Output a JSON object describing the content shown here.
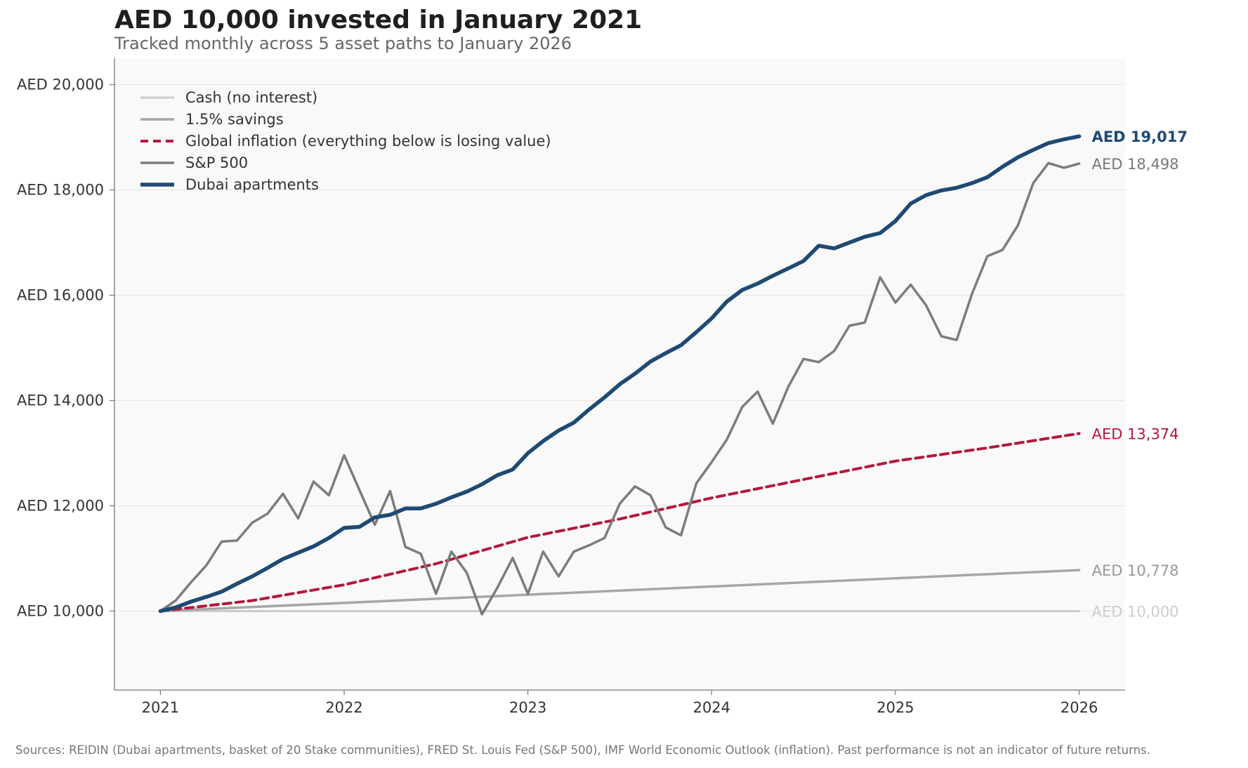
{
  "colors": {
    "cash": "#cccccc",
    "savings": "#a6a6a6",
    "inflation": "#b5173b",
    "sp500": "#7c7c7c",
    "dubai": "#1e4a73",
    "axis": "#777777",
    "grid": "#e6e6e6",
    "plot_bg": "#f9f9fa"
  },
  "chart_data": {
    "type": "line",
    "title": "AED 10,000 invested in January 2021",
    "subtitle": "Tracked monthly across 5 asset paths to January 2026",
    "xlabel": "",
    "ylabel": "",
    "xlim": [
      2020.75,
      2026.25
    ],
    "ylim": [
      8500,
      20500
    ],
    "x_ticks": [
      2021,
      2022,
      2023,
      2024,
      2025,
      2026
    ],
    "x_tick_labels": [
      "2021",
      "2022",
      "2023",
      "2024",
      "2025",
      "2026"
    ],
    "y_ticks": [
      10000,
      12000,
      14000,
      16000,
      18000,
      20000
    ],
    "y_tick_labels": [
      "AED 10,000",
      "AED 12,000",
      "AED 14,000",
      "AED 16,000",
      "AED 18,000",
      "AED 20,000"
    ],
    "grid": "horizontal",
    "legend_position": "top-left",
    "footnote": "Sources: REIDIN (Dubai apartments, basket of 20 Stake communities), FRED St. Louis Fed (S&P 500), IMF World Economic Outlook (inflation). Past performance is not an indicator of future returns.",
    "series": [
      {
        "name": "Cash (no interest)",
        "key": "cash",
        "x_start": "2021-01",
        "x_step": "monthly",
        "values": [
          10000,
          10000
        ],
        "x": [
          2021,
          2026
        ],
        "end_label": "AED 10,000"
      },
      {
        "name": "1.5% savings",
        "key": "savings",
        "x": [
          2021,
          2026
        ],
        "values": [
          10000,
          10778
        ],
        "end_label": "AED 10,778"
      },
      {
        "name": "Global inflation (everything below is losing value)",
        "key": "inflation",
        "x": [
          2021,
          2021.5,
          2022,
          2022.5,
          2023,
          2023.5,
          2024,
          2024.5,
          2025,
          2025.5,
          2026
        ],
        "values": [
          10000,
          10200,
          10500,
          10900,
          11400,
          11750,
          12150,
          12500,
          12850,
          13100,
          13374
        ],
        "end_label": "AED 13,374"
      },
      {
        "name": "S&P 500",
        "key": "sp500",
        "x": [
          2021,
          2021.083,
          2021.167,
          2021.25,
          2021.333,
          2021.417,
          2021.5,
          2021.583,
          2021.667,
          2021.75,
          2021.833,
          2021.917,
          2022,
          2022.083,
          2022.167,
          2022.25,
          2022.333,
          2022.417,
          2022.5,
          2022.583,
          2022.667,
          2022.75,
          2022.833,
          2022.917,
          2023,
          2023.083,
          2023.167,
          2023.25,
          2023.333,
          2023.417,
          2023.5,
          2023.583,
          2023.667,
          2023.75,
          2023.833,
          2023.917,
          2024,
          2024.083,
          2024.167,
          2024.25,
          2024.333,
          2024.417,
          2024.5,
          2024.583,
          2024.667,
          2024.75,
          2024.833,
          2024.917,
          2025,
          2025.083,
          2025.167,
          2025.25,
          2025.333,
          2025.417,
          2025.5,
          2025.583,
          2025.667,
          2025.75,
          2025.833,
          2025.917,
          2026
        ],
        "values": [
          10000,
          10200,
          10550,
          10870,
          11320,
          11340,
          11680,
          11850,
          12230,
          11760,
          12460,
          12200,
          12960,
          12300,
          11640,
          12280,
          11220,
          11090,
          10330,
          11130,
          10730,
          9940,
          10440,
          11010,
          10330,
          11130,
          10660,
          11130,
          11250,
          11390,
          12040,
          12370,
          12200,
          11590,
          11440,
          12430,
          12830,
          13260,
          13880,
          14170,
          13560,
          14260,
          14790,
          14730,
          14940,
          15420,
          15480,
          16340,
          15860,
          16200,
          15810,
          15220,
          15150,
          16030,
          16740,
          16860,
          17330,
          18130,
          18510,
          18420,
          18498
        ],
        "end_label": "AED 18,498"
      },
      {
        "name": "Dubai apartments",
        "key": "dubai",
        "x": [
          2021,
          2021.083,
          2021.167,
          2021.25,
          2021.333,
          2021.417,
          2021.5,
          2021.583,
          2021.667,
          2021.75,
          2021.833,
          2021.917,
          2022,
          2022.083,
          2022.167,
          2022.25,
          2022.333,
          2022.417,
          2022.5,
          2022.583,
          2022.667,
          2022.75,
          2022.833,
          2022.917,
          2023,
          2023.083,
          2023.167,
          2023.25,
          2023.333,
          2023.417,
          2023.5,
          2023.583,
          2023.667,
          2023.75,
          2023.833,
          2023.917,
          2024,
          2024.083,
          2024.167,
          2024.25,
          2024.333,
          2024.417,
          2024.5,
          2024.583,
          2024.667,
          2024.75,
          2024.833,
          2024.917,
          2025,
          2025.083,
          2025.167,
          2025.25,
          2025.333,
          2025.417,
          2025.5,
          2025.583,
          2025.667,
          2025.75,
          2025.833,
          2025.917,
          2026
        ],
        "values": [
          10000,
          10070,
          10180,
          10270,
          10370,
          10520,
          10660,
          10820,
          10990,
          11110,
          11230,
          11390,
          11580,
          11600,
          11780,
          11830,
          11950,
          11950,
          12040,
          12160,
          12270,
          12410,
          12580,
          12690,
          13000,
          13230,
          13430,
          13580,
          13830,
          14060,
          14310,
          14510,
          14740,
          14900,
          15050,
          15300,
          15560,
          15880,
          16100,
          16220,
          16370,
          16510,
          16650,
          16940,
          16890,
          17000,
          17110,
          17180,
          17410,
          17740,
          17900,
          17990,
          18040,
          18130,
          18240,
          18440,
          18620,
          18760,
          18890,
          18960,
          19017
        ],
        "end_label": "AED 19,017"
      }
    ]
  }
}
